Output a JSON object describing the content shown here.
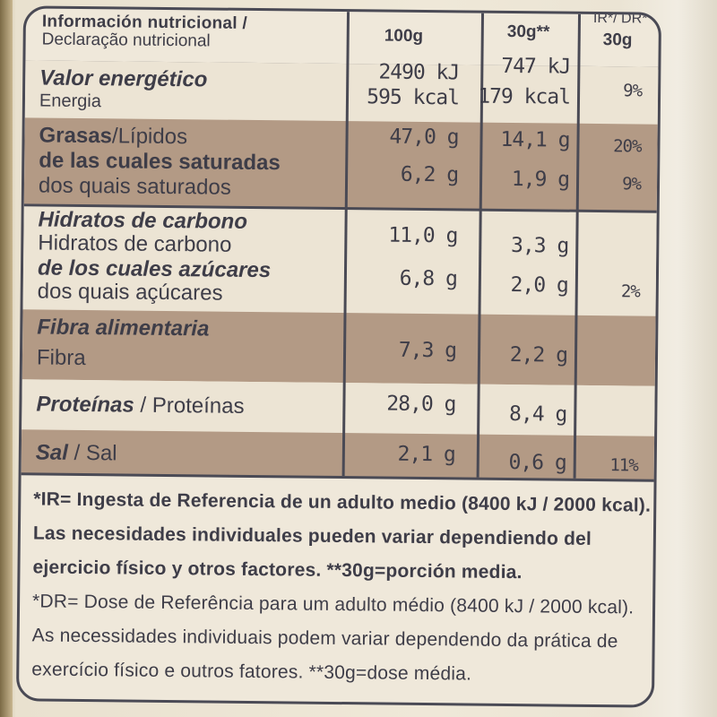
{
  "header": {
    "title_es": "Información nutricional /",
    "title_pt": "Declaração nutricional",
    "col_100g": "100g",
    "col_30g": "30g**",
    "col_ir": "IR*/ DR*",
    "col_ir_30g": "30g"
  },
  "rows": {
    "energy": {
      "label_es": "Valor energético",
      "label_pt": "Energia",
      "v100_kj": "2490 kJ",
      "v100_kcal": "595 kcal",
      "v30_kj": "747 kJ",
      "v30_kcal": "179 kcal",
      "ir": "9%"
    },
    "fat": {
      "label_es": "Grasas",
      "label_pt": "Lípidos",
      "v100": "47,0 g",
      "v30": "14,1 g",
      "ir": "20%"
    },
    "saturated": {
      "label_es": "de las cuales saturadas",
      "label_pt": "dos quais saturados",
      "v100": "6,2 g",
      "v30": "1,9 g",
      "ir": "9%"
    },
    "carbs": {
      "label_es": "Hidratos de carbono",
      "label_pt": "Hidratos de carbono",
      "v100": "11,0 g",
      "v30": "3,3 g",
      "ir": ""
    },
    "sugars": {
      "label_es": "de los cuales azúcares",
      "label_pt": "dos quais açúcares",
      "v100": "6,8 g",
      "v30": "2,0 g",
      "ir": "2%"
    },
    "fibre": {
      "label_es": "Fibra alimentaria",
      "label_pt": "Fibra",
      "v100": "7,3 g",
      "v30": "2,2 g",
      "ir": ""
    },
    "protein": {
      "label_es": "Proteínas",
      "sep": " / ",
      "label_pt": "Proteínas",
      "v100": "28,0 g",
      "v30": "8,4 g",
      "ir": ""
    },
    "salt": {
      "label_es": "Sal",
      "sep": " / ",
      "label_pt": "Sal",
      "v100": "2,1 g",
      "v30": "0,6 g",
      "ir": "11%"
    }
  },
  "footnotes": {
    "ir_line1": "*IR= Ingesta de Referencia de un adulto medio (8400 kJ / 2000 kcal).",
    "ir_line2": "Las necesidades individuales pueden variar dependiendo del",
    "ir_line3": "ejercicio físico y otros factores. **30g=porción media.",
    "dr_line1": "*DR= Dose de Referência para um adulto médio (8400 kJ / 2000 kcal).",
    "dr_line2": "As necessidades individuais podem variar dependendo da prática de",
    "dr_line3": "exercício físico e outros fatores. **30g=dose média."
  }
}
